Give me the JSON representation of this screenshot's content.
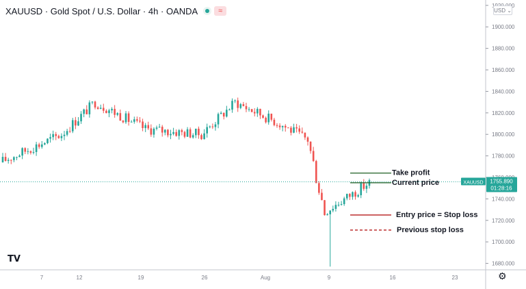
{
  "header": {
    "symbol": "XAUUSD",
    "sep": "·",
    "name": "Gold Spot / U.S. Dollar",
    "slash": "·",
    "interval": "4h",
    "source": "OANDA"
  },
  "icons": {
    "status": "market-open-dot-icon",
    "wave": "wave-icon",
    "logo": "tradingview-logo-icon",
    "settings": "gear-icon"
  },
  "colors": {
    "up": "#26a69a",
    "down": "#ef5350",
    "take_profit": "#1b5e20",
    "entry": "#b71c1c",
    "price_label": "#26a69a"
  },
  "chart_data": {
    "type": "candlestick",
    "title": "XAUUSD · Gold Spot / U.S. Dollar · 4h · OANDA",
    "currency": "USD",
    "yticks": [
      1680,
      1700,
      1720,
      1740,
      1760,
      1780,
      1800,
      1820,
      1840,
      1860,
      1880,
      1900,
      1920
    ],
    "ylim": [
      1674,
      1925
    ],
    "xticks": [
      "7",
      "12",
      "19",
      "26",
      "Aug",
      "9",
      "16",
      "23"
    ],
    "grid": false,
    "last_price": {
      "symbol": "XAUUSD",
      "price": "1755.890",
      "countdown": "01:28:16",
      "value": 1755.89
    },
    "annotations": [
      {
        "text": "Take profit",
        "price": 1764,
        "style": "solid",
        "color": "#1b5e20"
      },
      {
        "text": "Current price",
        "price": 1755,
        "style": "solid",
        "color": "#1b5e20"
      },
      {
        "text": "Entry price = Stop loss",
        "price": 1725,
        "style": "solid",
        "color": "#b71c1c"
      },
      {
        "text": "Previous stop loss",
        "price": 1711,
        "style": "dashed",
        "color": "#b71c1c"
      }
    ],
    "segments": [
      {
        "from": 1774,
        "to": 1800,
        "candles": 22,
        "amp": 5
      },
      {
        "from": 1800,
        "to": 1830,
        "candles": 12,
        "amp": 5
      },
      {
        "from": 1830,
        "to": 1805,
        "candles": 18,
        "amp": 5
      },
      {
        "from": 1805,
        "to": 1800,
        "candles": 20,
        "amp": 5
      },
      {
        "from": 1800,
        "to": 1830,
        "candles": 12,
        "amp": 5
      },
      {
        "from": 1830,
        "to": 1810,
        "candles": 16,
        "amp": 5
      },
      {
        "from": 1810,
        "to": 1795,
        "candles": 10,
        "amp": 5
      },
      {
        "from": 1795,
        "to": 1728,
        "candles": 6,
        "amp": 8
      },
      {
        "from": 1728,
        "to": 1755,
        "candles": 16,
        "amp": 5
      }
    ]
  }
}
